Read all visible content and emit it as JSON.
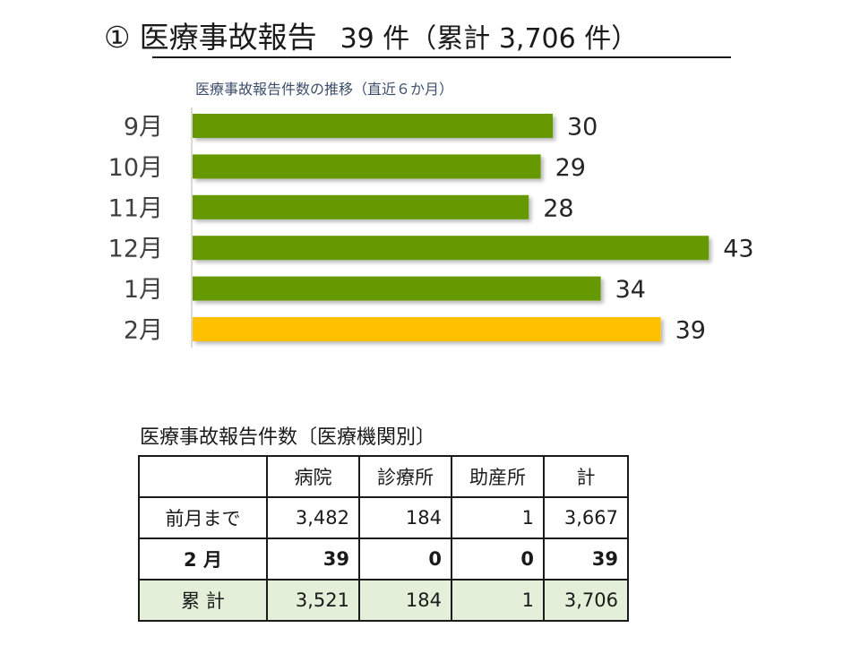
{
  "header": {
    "num": "①",
    "title": "医療事故報告",
    "count": "39 件（累計 3,706 件）"
  },
  "chart_data": {
    "type": "bar",
    "orientation": "horizontal",
    "title": "医療事故報告件数の推移（直近６か月）",
    "categories": [
      "9月",
      "10月",
      "11月",
      "12月",
      "1月",
      "2月"
    ],
    "values": [
      30,
      29,
      28,
      43,
      34,
      39
    ],
    "colors": [
      "#669900",
      "#669900",
      "#669900",
      "#669900",
      "#669900",
      "#ffc000"
    ],
    "xlim": [
      0,
      45
    ],
    "grid": false
  },
  "table": {
    "title": "医療事故報告件数〔医療機関別〕",
    "headers": [
      "",
      "病院",
      "診療所",
      "助産所",
      "計"
    ],
    "rows": [
      {
        "label": "前月まで",
        "values": [
          "3,482",
          "184",
          "1",
          "3,667"
        ]
      },
      {
        "label": "2 月",
        "values": [
          "39",
          "0",
          "0",
          "39"
        ]
      },
      {
        "label": "累 計",
        "values": [
          "3,521",
          "184",
          "1",
          "3,706"
        ]
      }
    ],
    "total_bg": "#e3efd9"
  }
}
